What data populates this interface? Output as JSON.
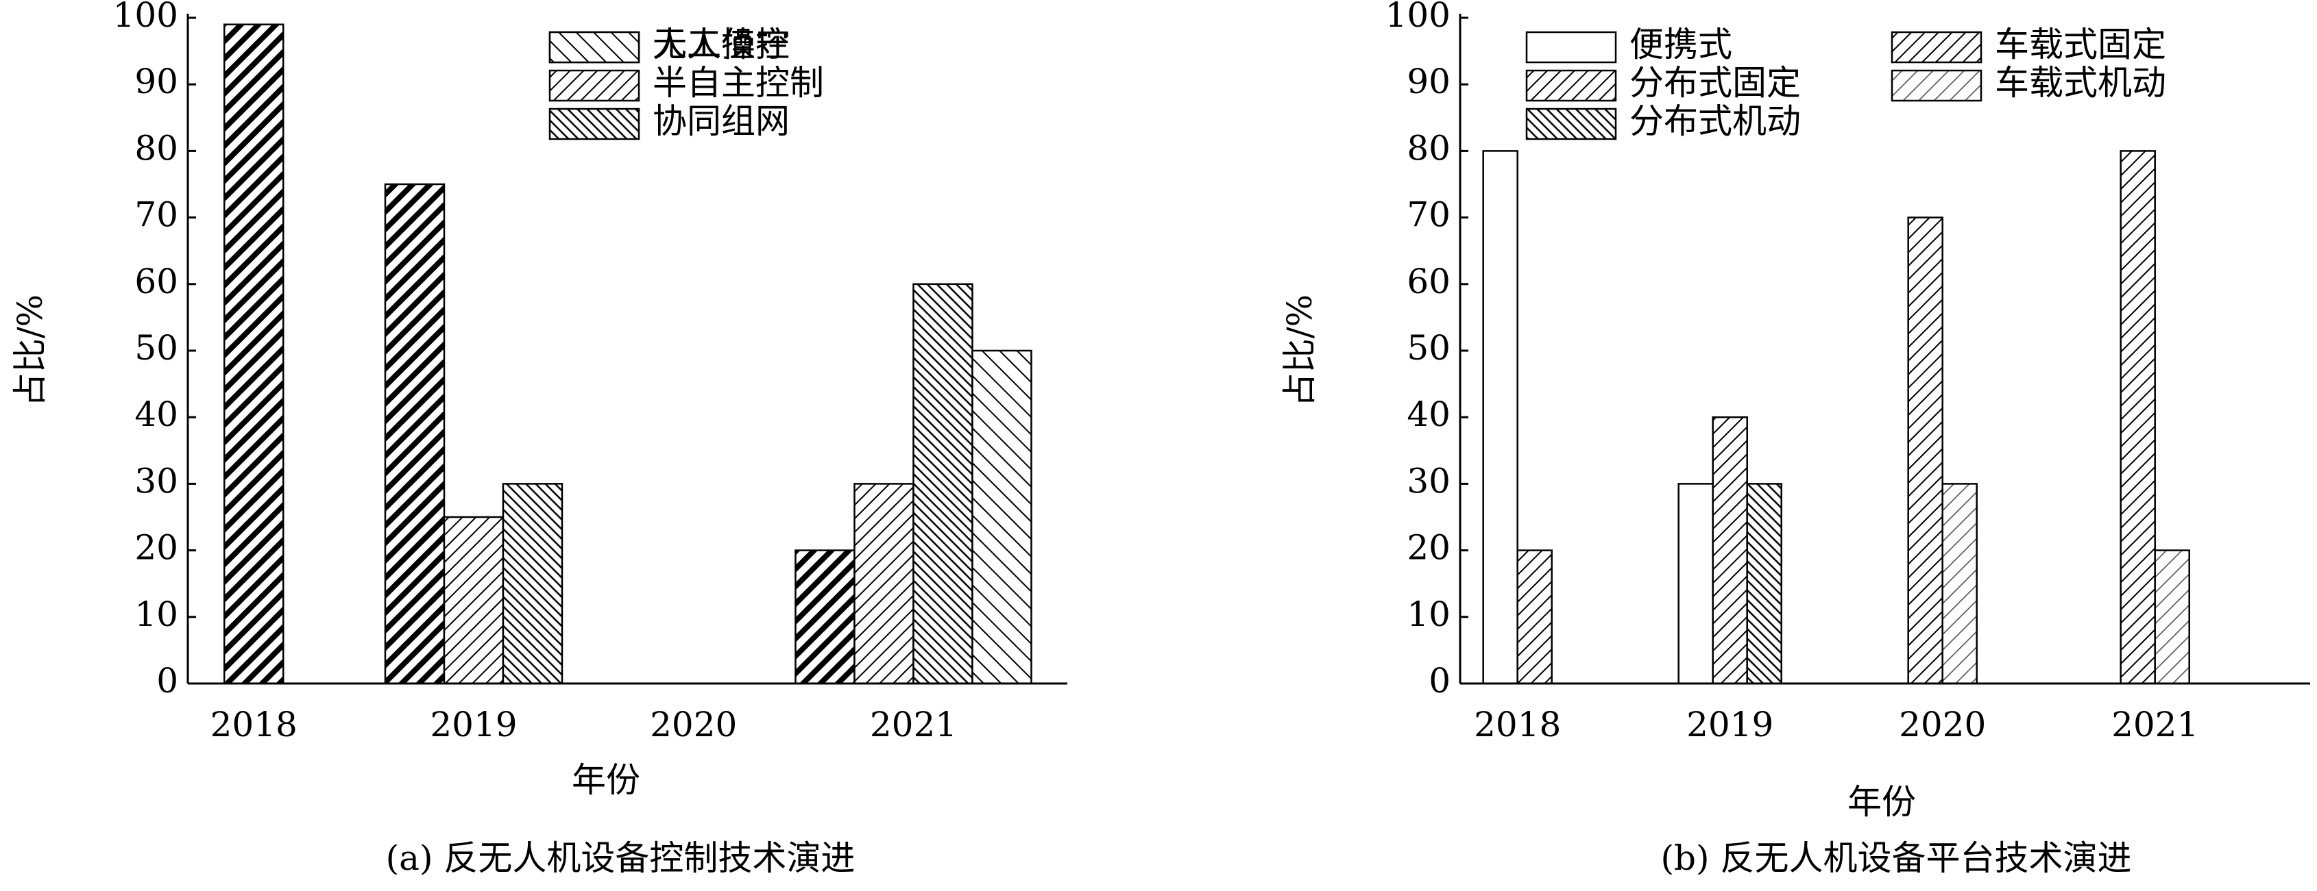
{
  "chart_data": [
    {
      "type": "bar",
      "caption": "(a)  反无人机设备控制技术演进",
      "xlabel": "年份",
      "ylabel": "占比/%",
      "categories": [
        "2018",
        "2019",
        "2020",
        "2021"
      ],
      "series": [
        {
          "name": "人工操控",
          "hatch": "thick-forward",
          "values": [
            99,
            75,
            null,
            20
          ]
        },
        {
          "name": "半自主控制",
          "hatch": "forward",
          "values": [
            null,
            25,
            null,
            30
          ]
        },
        {
          "name": "协同组网",
          "hatch": "back-dense",
          "values": [
            null,
            30,
            null,
            60
          ]
        },
        {
          "name": "无人值守",
          "hatch": "back",
          "values": [
            null,
            null,
            null,
            50
          ]
        }
      ],
      "ylim": [
        0,
        100
      ],
      "yticks": [
        0,
        10,
        20,
        30,
        40,
        50,
        60,
        70,
        80,
        90,
        100
      ]
    },
    {
      "type": "bar",
      "caption": "(b)  反无人机设备平台技术演进",
      "xlabel": "年份",
      "ylabel": "占比/%",
      "categories": [
        "2018",
        "2019",
        "2020",
        "2021"
      ],
      "series": [
        {
          "name": "便携式",
          "hatch": "none",
          "values": [
            80,
            30,
            null,
            null
          ]
        },
        {
          "name": "分布式固定",
          "hatch": "forward",
          "values": [
            20,
            40,
            null,
            null
          ]
        },
        {
          "name": "分布式机动",
          "hatch": "back-dense",
          "values": [
            null,
            30,
            null,
            null
          ]
        },
        {
          "name": "车载式固定",
          "hatch": "forward",
          "values": [
            null,
            null,
            70,
            80
          ]
        },
        {
          "name": "车载式机动",
          "hatch": "forward-fine",
          "values": [
            null,
            null,
            30,
            20
          ]
        }
      ],
      "ylim": [
        0,
        100
      ],
      "yticks": [
        0,
        10,
        20,
        30,
        40,
        50,
        60,
        70,
        80,
        90,
        100
      ]
    }
  ]
}
